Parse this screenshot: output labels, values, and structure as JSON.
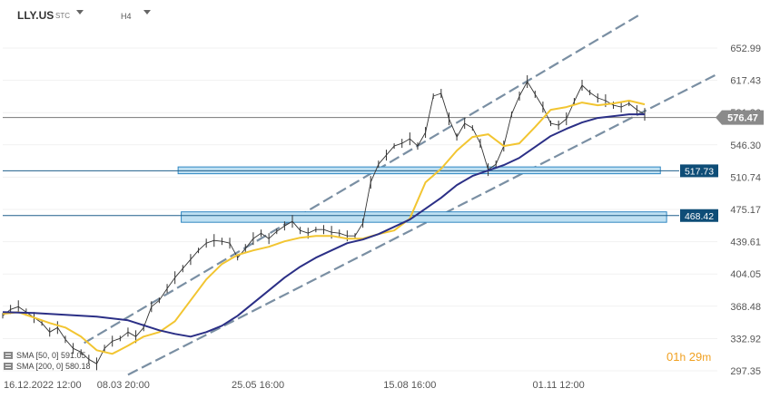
{
  "header": {
    "symbol": "LLY.US",
    "symbol_sub": "STC",
    "timeframe": "H4"
  },
  "legend": [
    {
      "text": "SMA [50, 0] 591.05"
    },
    {
      "text": "SMA [200, 0] 580.18"
    }
  ],
  "countdown": {
    "hours": "01",
    "hours_unit": "h",
    "minutes": "29",
    "minutes_unit": "m"
  },
  "colors": {
    "candles": "#333333",
    "sma50": "#f2c531",
    "sma200": "#2b2f86",
    "channel": "#7a8fa3",
    "zone_fill": "#bfe0f2",
    "zone_border": "#2e86c1",
    "price_tag": "#0e4d77",
    "current_tag": "#8a8a8a"
  },
  "chart_data": {
    "type": "line",
    "title": "LLY.US",
    "timeframe": "H4",
    "ylim": [
      280,
      695
    ],
    "y_ticks": [
      "652.99",
      "617.43",
      "581.86",
      "546.30",
      "510.74",
      "475.17",
      "439.61",
      "404.05",
      "368.48",
      "332.92",
      "297.35"
    ],
    "x_ticks": [
      "16.12.2022 12:00",
      "08.03 20:00",
      "25.05 16:00",
      "15.08 16:00",
      "01.11 12:00"
    ],
    "x_tick_positions": [
      0,
      77,
      163,
      260,
      355
    ],
    "x_range": [
      0,
      420
    ],
    "current_price": "576.47",
    "horizontal_levels": [
      {
        "value": 517.73,
        "label": "517.73"
      },
      {
        "value": 468.42,
        "label": "468.42"
      }
    ],
    "zones": [
      {
        "from": 514.5,
        "to": 522.0,
        "x_start": 112,
        "x_end": 420
      },
      {
        "from": 461.0,
        "to": 472.5,
        "x_start": 114,
        "x_end": 424
      }
    ],
    "channel_lines": [
      {
        "x": [
          52,
          408
        ],
        "y": [
          328,
          691
        ]
      },
      {
        "x": [
          80,
          456
        ],
        "y": [
          293,
          624
        ]
      }
    ],
    "series": [
      {
        "name": "SMA [50, 0]",
        "x": [
          0,
          10,
          20,
          30,
          40,
          50,
          60,
          70,
          80,
          90,
          100,
          110,
          120,
          130,
          140,
          150,
          160,
          170,
          180,
          190,
          200,
          210,
          220,
          230,
          240,
          250,
          260,
          270,
          280,
          290,
          300,
          310,
          320,
          330,
          340,
          350,
          360,
          370,
          380,
          390,
          400,
          410
        ],
        "y": [
          360,
          362,
          356,
          350,
          345,
          335,
          320,
          316,
          325,
          335,
          340,
          352,
          375,
          398,
          415,
          425,
          430,
          434,
          440,
          444,
          446,
          446,
          443,
          443,
          448,
          452,
          465,
          505,
          520,
          540,
          555,
          558,
          545,
          548,
          566,
          585,
          588,
          593,
          590,
          592,
          595,
          591
        ]
      },
      {
        "name": "SMA [200, 0]",
        "x": [
          0,
          20,
          40,
          60,
          80,
          100,
          110,
          120,
          130,
          140,
          150,
          160,
          170,
          180,
          190,
          200,
          210,
          220,
          230,
          240,
          250,
          260,
          270,
          280,
          290,
          300,
          310,
          320,
          330,
          340,
          350,
          360,
          370,
          380,
          390,
          400,
          410
        ],
        "y": [
          362,
          361,
          359,
          357,
          353,
          342,
          338,
          335,
          340,
          347,
          358,
          372,
          386,
          400,
          412,
          422,
          430,
          438,
          442,
          448,
          456,
          464,
          476,
          488,
          502,
          512,
          518,
          524,
          532,
          544,
          556,
          564,
          571,
          576,
          578,
          580,
          580
        ]
      },
      {
        "name": "Price",
        "x": [
          0,
          5,
          10,
          15,
          20,
          25,
          30,
          35,
          40,
          45,
          50,
          55,
          60,
          65,
          70,
          75,
          80,
          85,
          90,
          95,
          100,
          105,
          110,
          115,
          120,
          125,
          130,
          135,
          140,
          145,
          150,
          155,
          160,
          165,
          170,
          175,
          180,
          185,
          190,
          195,
          200,
          205,
          210,
          215,
          220,
          225,
          230,
          235,
          240,
          245,
          250,
          255,
          260,
          265,
          270,
          275,
          280,
          285,
          290,
          295,
          300,
          305,
          310,
          315,
          320,
          325,
          330,
          335,
          340,
          345,
          350,
          355,
          360,
          365,
          370,
          375,
          380,
          385,
          390,
          395,
          400,
          405,
          410
        ],
        "y": [
          358,
          365,
          368,
          362,
          356,
          350,
          340,
          345,
          332,
          322,
          318,
          310,
          305,
          322,
          330,
          333,
          340,
          335,
          345,
          368,
          375,
          388,
          400,
          410,
          420,
          430,
          438,
          441,
          440,
          438,
          422,
          432,
          443,
          449,
          443,
          451,
          457,
          462,
          452,
          449,
          453,
          453,
          450,
          449,
          446,
          446,
          460,
          505,
          525,
          535,
          545,
          548,
          553,
          545,
          560,
          600,
          603,
          575,
          555,
          570,
          565,
          548,
          519,
          525,
          545,
          580,
          600,
          616,
          602,
          588,
          570,
          568,
          575,
          594,
          612,
          604,
          598,
          595,
          590,
          588,
          592,
          585,
          580
        ]
      }
    ]
  }
}
